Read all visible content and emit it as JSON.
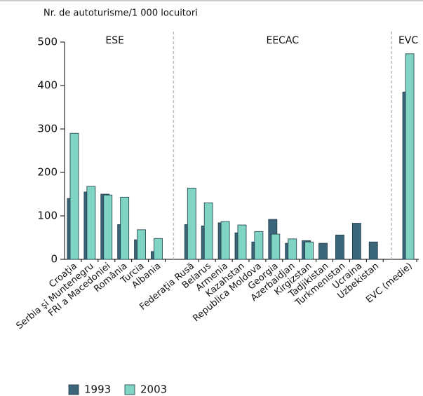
{
  "chart_data": {
    "type": "bar",
    "y_axis_label": "Nr. de autoturisme/1 000 locuitori",
    "annotations": [
      "ESE",
      "EECAC",
      "EVC"
    ],
    "categories": [
      "Croaţia",
      "Serbia şi Muntenegru",
      "FRI a Macedoniei",
      "România",
      "Turcia",
      "Albania",
      null,
      "Federaţia Rusă",
      "Belarus",
      "Armenia",
      "Kazahstan",
      "Republica Moldova",
      "Georgia",
      "Azerbaidjan",
      "Kirgizstan",
      "Tadjikistan",
      "Turkmenistan",
      "Ucraina",
      "Uzbekistan",
      null,
      "EVC (medie)"
    ],
    "series": [
      {
        "name": "1993",
        "color": "#3b6679",
        "values": [
          140,
          155,
          150,
          80,
          45,
          18,
          null,
          80,
          77,
          84,
          61,
          40,
          92,
          37,
          43,
          37,
          56,
          83,
          40,
          null,
          385
        ]
      },
      {
        "name": "2003",
        "color": "#80d4c4",
        "values": [
          290,
          168,
          148,
          143,
          68,
          48,
          null,
          164,
          130,
          87,
          79,
          64,
          58,
          47,
          40,
          null,
          null,
          null,
          null,
          null,
          473
        ]
      }
    ],
    "ylim": [
      0,
      500
    ],
    "yticks": [
      0,
      100,
      200,
      300,
      400,
      500
    ],
    "grid": false
  }
}
